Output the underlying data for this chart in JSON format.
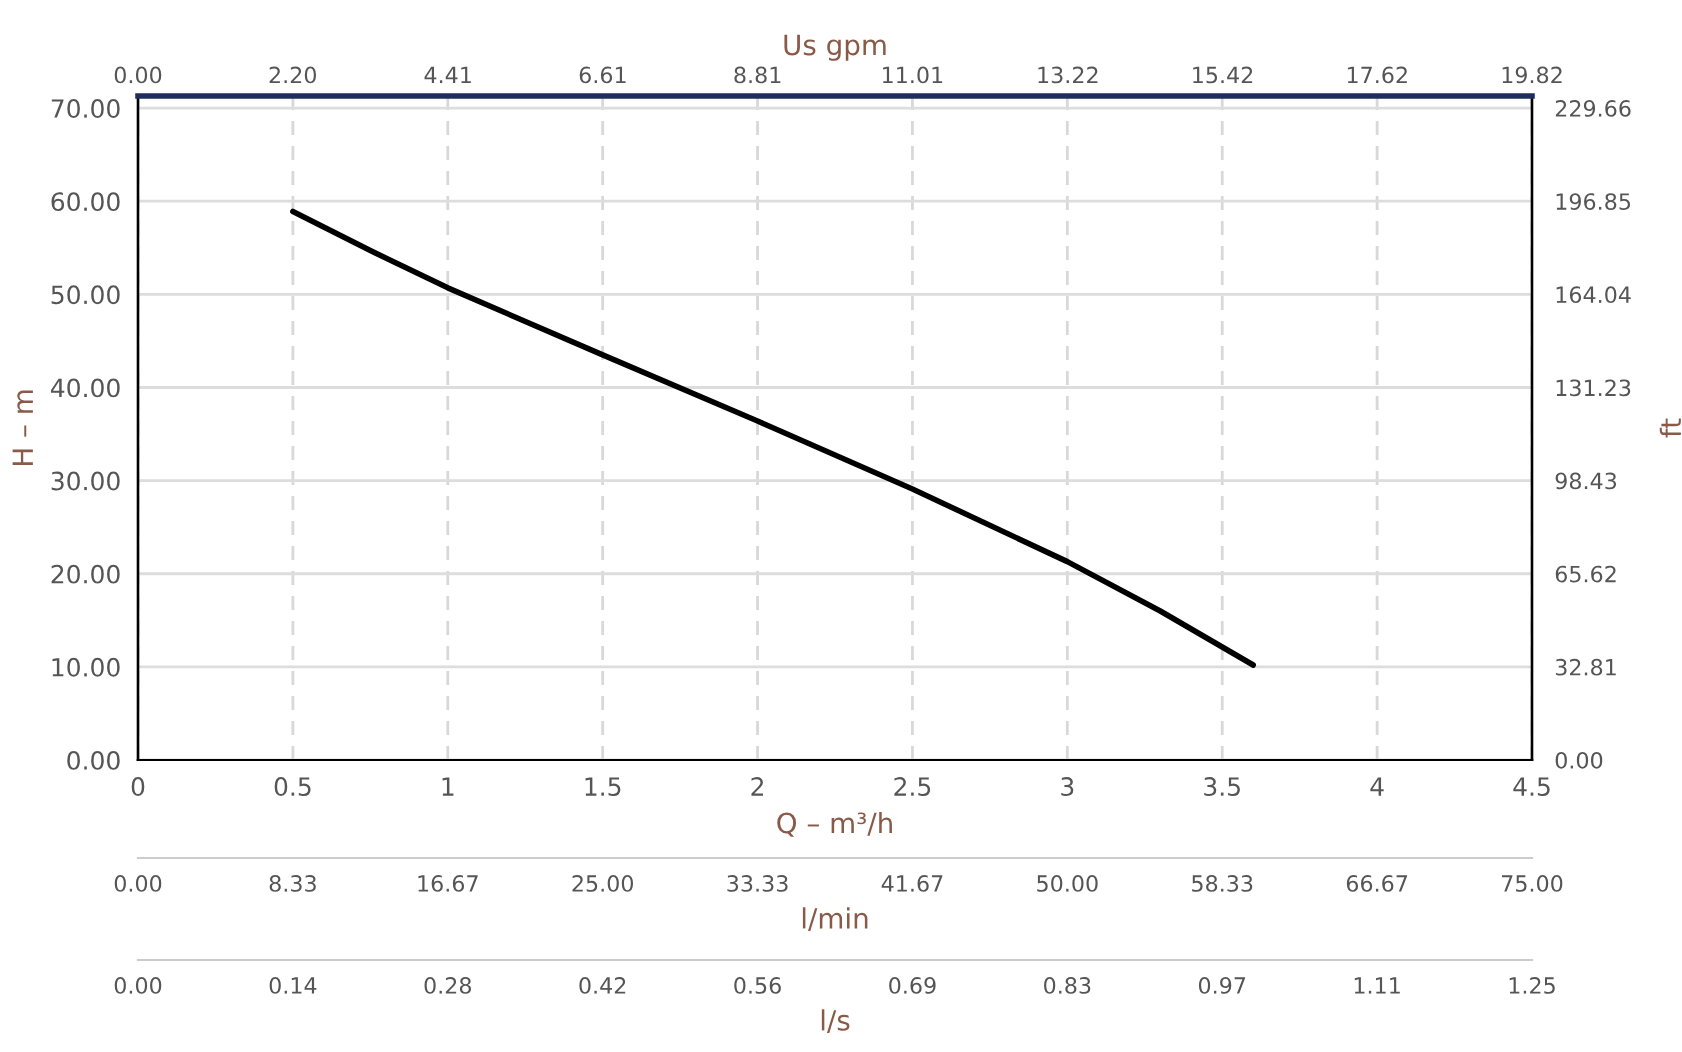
{
  "chart_data": {
    "type": "line",
    "xlabel": "Q – m³/h",
    "ylabel": "H – m",
    "y2label": "ft",
    "x2label": "Us gpm",
    "annotations": [
      "0.00",
      "8.33",
      "16.67",
      "25.00",
      "33.33",
      "41.67",
      "50.00",
      "58.33",
      "66.67",
      "75.00",
      "l/min",
      "0.00",
      "0.14",
      "0.28",
      "0.42",
      "0.56",
      "0.69",
      "0.83",
      "0.97",
      "1.11",
      "1.25",
      "l/s"
    ],
    "x": [
      0.5,
      0.75,
      1,
      1.5,
      2,
      2.5,
      3,
      3.3,
      3.6
    ],
    "series": [
      {
        "color": "#000000",
        "values": [
          58.9,
          54.7,
          50.7,
          43.5,
          36.4,
          29.1,
          21.3,
          16.0,
          10.2
        ]
      }
    ],
    "xlim": [
      0,
      4.5
    ],
    "xticks": [
      0,
      0.5,
      1,
      1.5,
      2,
      2.5,
      3,
      3.5,
      4,
      4.5
    ],
    "ylim": [
      0,
      71.3
    ],
    "yticks": [
      {
        "value": 0,
        "label": "0.00"
      },
      {
        "value": 10,
        "label": "10.00"
      },
      {
        "value": 20,
        "label": "20.00"
      },
      {
        "value": 30,
        "label": "30.00"
      },
      {
        "value": 40,
        "label": "40.00"
      },
      {
        "value": 50,
        "label": "50.00"
      },
      {
        "value": 60,
        "label": "60.00"
      },
      {
        "value": 70,
        "label": "70.00"
      }
    ],
    "y2lim": [
      0,
      233.92
    ],
    "y2ticks": [
      {
        "value": 0,
        "label": "0.00"
      },
      32.81,
      65.62,
      98.43,
      131.23,
      164.04,
      196.85,
      229.66
    ],
    "x2lim": [
      0,
      19.82
    ],
    "x2ticks": [
      {
        "value": 0,
        "label": "0.00"
      },
      {
        "value": 2.2,
        "label": "2.20"
      },
      4.41,
      6.61,
      8.81,
      11.01,
      13.22,
      15.42,
      17.62,
      19.82
    ],
    "grid": true,
    "line_style": "solid",
    "marker": "none"
  }
}
